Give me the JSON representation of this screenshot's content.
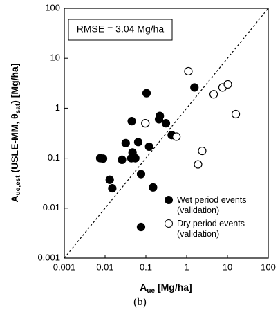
{
  "chart_data": {
    "type": "scatter",
    "annotation": "RMSE = 3.04 Mg/ha",
    "x_label": {
      "main": "A",
      "sub": "ue",
      "rest": " [Mg/ha]"
    },
    "y_label": {
      "main": "A",
      "sub": "ue,est",
      "mid": " (USLE-MM, θ",
      "sub2": "sat",
      "rest": ") [Mg/ha]"
    },
    "caption": "(b)",
    "log_x": true,
    "log_y": true,
    "xlim": [
      0.001,
      100
    ],
    "ylim": [
      0.001,
      100
    ],
    "xticks": [
      0.001,
      0.01,
      0.1,
      1,
      10,
      100
    ],
    "yticks": [
      0.001,
      0.01,
      0.1,
      1,
      10,
      100
    ],
    "series": [
      {
        "name": "Wet period events (validation)",
        "color": "#000000",
        "filled": true,
        "x": [
          0.0076,
          0.0089,
          0.013,
          0.015,
          0.026,
          0.032,
          0.044,
          0.045,
          0.047,
          0.055,
          0.065,
          0.076,
          0.076,
          0.104,
          0.12,
          0.15,
          0.22,
          0.21,
          0.31,
          0.43,
          1.55
        ],
        "values": [
          0.1,
          0.098,
          0.037,
          0.025,
          0.093,
          0.2,
          0.1,
          0.55,
          0.13,
          0.1,
          0.21,
          0.048,
          0.0042,
          2.0,
          0.17,
          0.026,
          0.7,
          0.6,
          0.5,
          0.29,
          2.6
        ]
      },
      {
        "name": "Dry period events (validation)",
        "color": "#000000",
        "filled": false,
        "x": [
          0.097,
          0.56,
          1.1,
          1.9,
          2.4,
          4.6,
          7.6,
          10.2,
          16
        ],
        "values": [
          0.5,
          0.27,
          5.5,
          0.075,
          0.14,
          1.9,
          2.6,
          3.0,
          0.76
        ]
      }
    ]
  }
}
